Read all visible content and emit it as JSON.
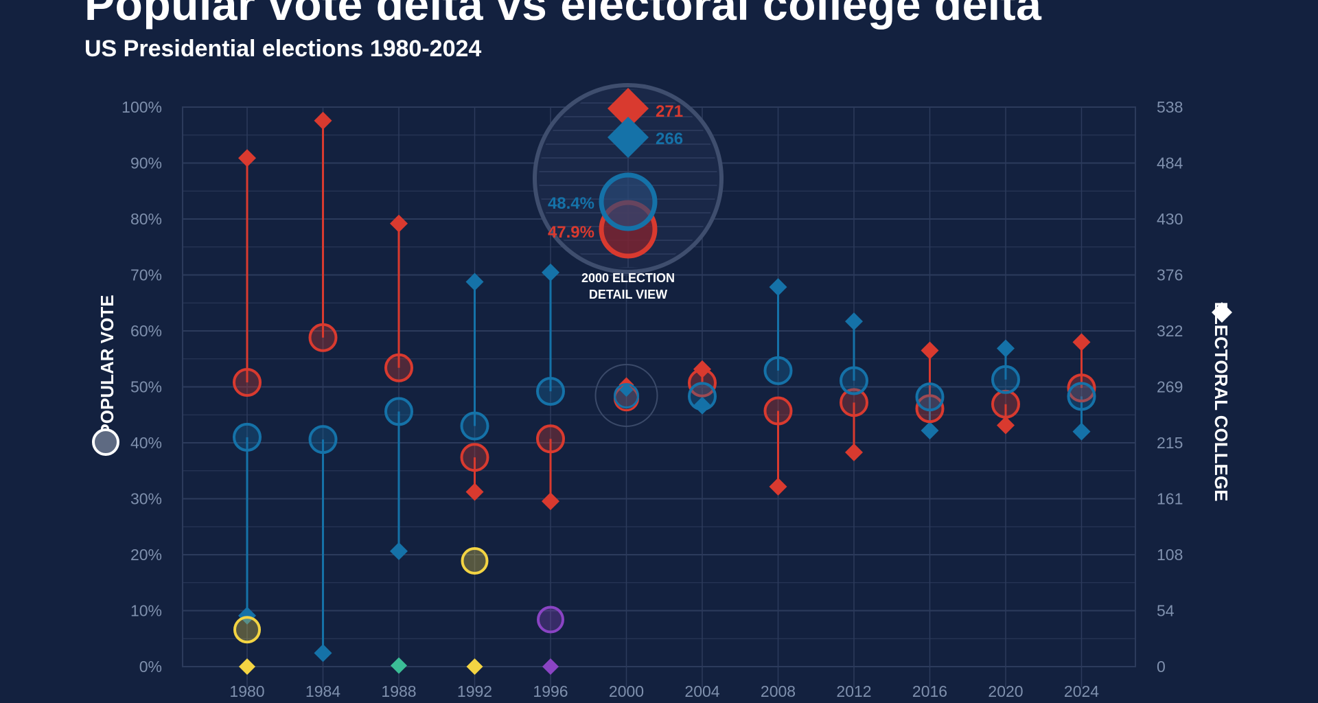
{
  "title": "Popular vote delta vs electoral college delta",
  "subtitle": "US Presidential elections 1980-2024",
  "colors": {
    "background": "#13213f",
    "republican": "#d93a2f",
    "democrat": "#1572a8",
    "third_party_1980": "#f3d443",
    "third_party_1988": "#3bbd96",
    "third_party_1992": "#f3d443",
    "third_party_1996": "#8a44c4",
    "grid": "#2c3b5c",
    "tick": "#7f90ad"
  },
  "chart_data": {
    "type": "scatter",
    "title": "Popular vote delta vs electoral college delta",
    "subtitle": "US Presidential elections 1980-2024",
    "x_categories": [
      "1980",
      "1984",
      "1988",
      "1992",
      "1996",
      "2000",
      "2004",
      "2008",
      "2012",
      "2016",
      "2020",
      "2024"
    ],
    "y_left": {
      "label": "POPULAR VOTE",
      "range": [
        0,
        100
      ],
      "ticks": [
        "0%",
        "10%",
        "20%",
        "30%",
        "40%",
        "50%",
        "60%",
        "70%",
        "80%",
        "90%",
        "100%"
      ]
    },
    "y_right": {
      "label": "ELECTORAL COLLEGE",
      "range": [
        0,
        538
      ],
      "ticks": [
        "0",
        "54",
        "108",
        "161",
        "215",
        "269",
        "322",
        "376",
        "430",
        "484",
        "538"
      ]
    },
    "legend": {
      "circle": "popular vote",
      "diamond": "electoral college"
    },
    "series": [
      {
        "party": "republican",
        "popular_vote_pct": [
          50.8,
          58.8,
          53.4,
          37.4,
          40.7,
          47.9,
          50.7,
          45.7,
          47.2,
          46.1,
          46.9,
          49.8
        ],
        "electoral_votes": [
          489,
          525,
          426,
          168,
          159,
          271,
          286,
          173,
          206,
          304,
          232,
          312
        ]
      },
      {
        "party": "democrat",
        "popular_vote_pct": [
          41.0,
          40.6,
          45.6,
          43.0,
          49.2,
          48.4,
          48.3,
          52.9,
          51.1,
          48.2,
          51.3,
          48.3
        ],
        "electoral_votes": [
          49,
          13,
          111,
          370,
          379,
          266,
          251,
          365,
          332,
          227,
          306,
          226
        ]
      },
      {
        "party": "third_party",
        "points": [
          {
            "x": "1980",
            "popular_vote_pct": 6.6,
            "electoral_votes": 0
          },
          {
            "x": "1988",
            "popular_vote_pct": null,
            "electoral_votes": 1
          },
          {
            "x": "1992",
            "popular_vote_pct": 18.9,
            "electoral_votes": 0
          },
          {
            "x": "1996",
            "popular_vote_pct": 8.4,
            "electoral_votes": 0
          }
        ]
      }
    ],
    "inset": {
      "year": "2000",
      "label_line1": "2000 ELECTION",
      "label_line2": "DETAIL VIEW",
      "rep_ev": "271",
      "dem_ev": "266",
      "dem_pv": "48.4%",
      "rep_pv": "47.9%"
    }
  }
}
